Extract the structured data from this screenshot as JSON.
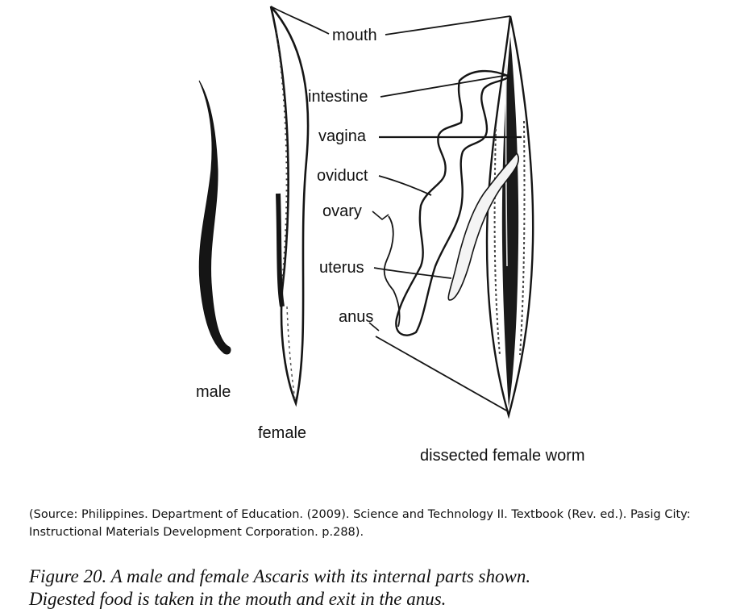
{
  "diagram": {
    "labels": {
      "male": "male",
      "female": "female",
      "dissected": "dissected female worm",
      "mouth": "mouth",
      "intestine": "intestine",
      "vagina": "vagina",
      "oviduct": "oviduct",
      "ovary": "ovary",
      "uterus": "uterus",
      "anus": "anus"
    }
  },
  "source": {
    "line1": "(Source: Philippines. Department of Education. (2009). Science and Technology II. Textbook (Rev. ed.).  Pasig City:",
    "line2": "Instructional Materials Development Corporation. p.288)."
  },
  "caption": {
    "line1": "Figure 20.  A male and female Ascaris with its internal parts shown.",
    "line2": "Digested food is taken in the mouth and exit in the anus."
  }
}
